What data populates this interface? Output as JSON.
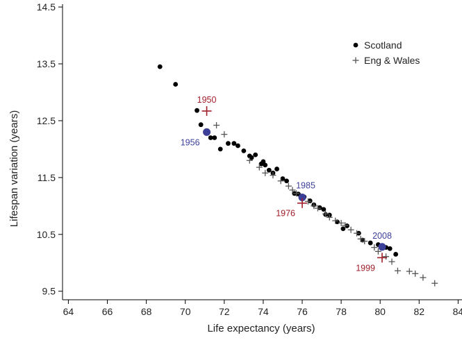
{
  "chart_data": {
    "type": "scatter",
    "title": "",
    "xlabel": "Life expectancy (years)",
    "ylabel": "Lifespan variation (years)",
    "xlim": [
      63.7,
      84.2
    ],
    "ylim": [
      9.35,
      14.55
    ],
    "xticks": [
      64,
      66,
      68,
      70,
      72,
      74,
      76,
      78,
      80,
      82,
      84
    ],
    "yticks": [
      9.5,
      10.5,
      11.5,
      12.5,
      13.5,
      14.5
    ],
    "xtick_labels": [
      "64",
      "66",
      "68",
      "70",
      "72",
      "74",
      "76",
      "78",
      "80",
      "82",
      "84"
    ],
    "ytick_labels": [
      "9.5",
      "10.5",
      "11.5",
      "12.5",
      "13.5",
      "14.5"
    ],
    "grid": false,
    "legend_position": "top-right",
    "series": [
      {
        "name": "Scotland",
        "marker": "dot",
        "color": "#000000",
        "points": [
          [
            68.7,
            13.45
          ],
          [
            69.5,
            13.14
          ],
          [
            70.6,
            12.68
          ],
          [
            70.8,
            12.43
          ],
          [
            71.3,
            12.2
          ],
          [
            71.5,
            12.2
          ],
          [
            71.8,
            12.0
          ],
          [
            72.2,
            12.1
          ],
          [
            72.5,
            12.1
          ],
          [
            72.7,
            12.06
          ],
          [
            73.0,
            11.97
          ],
          [
            73.3,
            11.88
          ],
          [
            73.4,
            11.85
          ],
          [
            73.6,
            11.9
          ],
          [
            73.9,
            11.74
          ],
          [
            74.0,
            11.78
          ],
          [
            74.1,
            11.72
          ],
          [
            74.3,
            11.63
          ],
          [
            74.5,
            11.58
          ],
          [
            74.7,
            11.65
          ],
          [
            75.0,
            11.48
          ],
          [
            75.2,
            11.44
          ],
          [
            75.6,
            11.22
          ],
          [
            75.8,
            11.21
          ],
          [
            76.1,
            11.16
          ],
          [
            76.4,
            11.09
          ],
          [
            76.6,
            11.02
          ],
          [
            76.9,
            10.97
          ],
          [
            77.1,
            10.94
          ],
          [
            77.2,
            10.85
          ],
          [
            77.4,
            10.84
          ],
          [
            77.8,
            10.72
          ],
          [
            78.1,
            10.6
          ],
          [
            78.3,
            10.65
          ],
          [
            78.9,
            10.52
          ],
          [
            79.1,
            10.4
          ],
          [
            79.5,
            10.35
          ],
          [
            79.9,
            10.32
          ],
          [
            80.3,
            10.27
          ],
          [
            80.5,
            10.25
          ],
          [
            80.8,
            10.15
          ]
        ]
      },
      {
        "name": "Eng & Wales",
        "marker": "plus",
        "color": "#555555",
        "points": [
          [
            71.6,
            12.42
          ],
          [
            72.0,
            12.26
          ],
          [
            73.3,
            11.8
          ],
          [
            73.8,
            11.68
          ],
          [
            74.1,
            11.58
          ],
          [
            74.5,
            11.54
          ],
          [
            74.9,
            11.44
          ],
          [
            75.3,
            11.35
          ],
          [
            75.5,
            11.28
          ],
          [
            75.7,
            11.22
          ],
          [
            76.0,
            11.14
          ],
          [
            76.3,
            11.08
          ],
          [
            76.6,
            11.0
          ],
          [
            76.8,
            10.96
          ],
          [
            77.2,
            10.86
          ],
          [
            77.4,
            10.8
          ],
          [
            77.7,
            10.74
          ],
          [
            78.0,
            10.7
          ],
          [
            78.2,
            10.66
          ],
          [
            78.5,
            10.58
          ],
          [
            78.8,
            10.52
          ],
          [
            79.0,
            10.42
          ],
          [
            79.2,
            10.38
          ],
          [
            79.7,
            10.27
          ],
          [
            79.9,
            10.2
          ],
          [
            80.3,
            10.11
          ],
          [
            80.6,
            10.02
          ],
          [
            80.9,
            9.86
          ],
          [
            81.5,
            9.85
          ],
          [
            81.8,
            9.81
          ],
          [
            82.2,
            9.74
          ],
          [
            82.8,
            9.64
          ]
        ]
      }
    ],
    "highlights": [
      {
        "label": "1950",
        "x": 71.1,
        "y": 12.67,
        "marker": "plus",
        "color": "#a01c28",
        "label_side": "above"
      },
      {
        "label": "1956",
        "x": 71.1,
        "y": 12.3,
        "marker": "dot",
        "color": "#3b3f98",
        "label_side": "left-below"
      },
      {
        "label": "1985",
        "x": 76.0,
        "y": 11.15,
        "marker": "dot",
        "color": "#3b3f98",
        "label_side": "above-right"
      },
      {
        "label": "1976",
        "x": 76.0,
        "y": 11.05,
        "marker": "plus",
        "color": "#a01c28",
        "label_side": "left-below"
      },
      {
        "label": "2008",
        "x": 80.1,
        "y": 10.28,
        "marker": "dot",
        "color": "#3b3f98",
        "label_side": "above"
      },
      {
        "label": "1999",
        "x": 80.1,
        "y": 10.09,
        "marker": "plus",
        "color": "#a01c28",
        "label_side": "left-below"
      }
    ]
  }
}
